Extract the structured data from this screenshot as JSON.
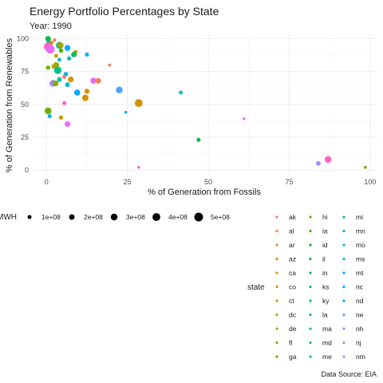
{
  "chart_data": {
    "type": "scatter",
    "title": "Energy Portfolio Percentages by State",
    "subtitle": "Year: 1990",
    "xlabel": "% of Generation from Fossils",
    "ylabel": "% of Generation from Renewables",
    "xlim": [
      -4,
      102
    ],
    "ylim": [
      -3,
      104
    ],
    "x_ticks": [
      0,
      25,
      50,
      75,
      100
    ],
    "y_ticks": [
      0,
      25,
      50,
      75,
      100
    ],
    "x_tick_labels": [
      "0",
      "25",
      "50",
      "75",
      "100"
    ],
    "y_tick_labels": [
      "0",
      "25",
      "50",
      "75",
      "100"
    ],
    "grid": true,
    "caption": "Data Source: EIA",
    "size_legend": {
      "title": "MWH",
      "labels": [
        "1e+08",
        "2e+08",
        "3e+08",
        "4e+08",
        "5e+08"
      ],
      "values": [
        100000000,
        200000000,
        300000000,
        400000000,
        500000000
      ]
    },
    "color_legend": {
      "title": "state",
      "columns": [
        [
          "ak",
          "al",
          "ar",
          "az",
          "ca",
          "co",
          "ct",
          "dc",
          "de",
          "fl",
          "ga"
        ],
        [
          "hi",
          "ia",
          "id",
          "il",
          "in",
          "ks",
          "ky",
          "la",
          "ma",
          "md",
          "me"
        ],
        [
          "mi",
          "mn",
          "mo",
          "ms",
          "mt",
          "nc",
          "nd",
          "ne",
          "nh",
          "nj",
          "nm"
        ]
      ],
      "colors": [
        [
          "#F8766D",
          "#F27D52",
          "#EA8331",
          "#E08B00",
          "#D49200",
          "#C89A00",
          "#B9A000",
          "#ABA300",
          "#9AA800",
          "#87AC00",
          "#70B000"
        ],
        [
          "#53B400",
          "#2EB600",
          "#00B81F",
          "#00BA42",
          "#00BC59",
          "#00BD6D",
          "#00BF7D",
          "#00C08B",
          "#00C098",
          "#00C1A5",
          "#00C0B1"
        ],
        [
          "#00BFBD",
          "#00BDC8",
          "#00BBD2",
          "#00B8DC",
          "#00B4E5",
          "#00AFEE",
          "#00A9FF",
          "#53A1FF",
          "#8B93FF",
          "#A58AFF",
          "#B983FF"
        ]
      ]
    },
    "points": [
      {
        "x": 0.5,
        "y": 100,
        "size": 200000000.0,
        "color": "#00BA42"
      },
      {
        "x": 0.6,
        "y": 98,
        "size": 100000000.0,
        "color": "#00C08B"
      },
      {
        "x": 1.5,
        "y": 97,
        "size": 120000000.0,
        "color": "#E08B00"
      },
      {
        "x": 2.5,
        "y": 99,
        "size": 70000000.0,
        "color": "#F8766D"
      },
      {
        "x": 0.5,
        "y": 94,
        "size": 450000000.0,
        "color": "#FF61C9"
      },
      {
        "x": 1.2,
        "y": 92,
        "size": 480000000.0,
        "color": "#E76BF3"
      },
      {
        "x": 4.0,
        "y": 95,
        "size": 320000000.0,
        "color": "#00BFBD"
      },
      {
        "x": 4.3,
        "y": 95,
        "size": 260000000.0,
        "color": "#9AA800"
      },
      {
        "x": 6.5,
        "y": 93,
        "size": 230000000.0,
        "color": "#00A9FF"
      },
      {
        "x": 4.5,
        "y": 91,
        "size": 130000000.0,
        "color": "#53B400"
      },
      {
        "x": 9.0,
        "y": 90,
        "size": 100000000.0,
        "color": "#B9A000"
      },
      {
        "x": 8.5,
        "y": 88,
        "size": 200000000.0,
        "color": "#00BC59"
      },
      {
        "x": 12.5,
        "y": 88,
        "size": 110000000.0,
        "color": "#00AFEE"
      },
      {
        "x": 3.0,
        "y": 87,
        "size": 100000000.0,
        "color": "#C89A00"
      },
      {
        "x": 7.0,
        "y": 85,
        "size": 110000000.0,
        "color": "#00C1A5"
      },
      {
        "x": 4.0,
        "y": 84,
        "size": 100000000.0,
        "color": "#00BFBD"
      },
      {
        "x": 3.0,
        "y": 80,
        "size": 220000000.0,
        "color": "#9AA800"
      },
      {
        "x": 2.3,
        "y": 79,
        "size": 140000000.0,
        "color": "#ABA300"
      },
      {
        "x": 0.5,
        "y": 78,
        "size": 120000000.0,
        "color": "#70B000"
      },
      {
        "x": 3.5,
        "y": 76,
        "size": 360000000.0,
        "color": "#00C098"
      },
      {
        "x": 19.5,
        "y": 80,
        "size": 60000000.0,
        "color": "#F27D52"
      },
      {
        "x": 6.0,
        "y": 73,
        "size": 130000000.0,
        "color": "#00B8DC"
      },
      {
        "x": 5.5,
        "y": 71,
        "size": 110000000.0,
        "color": "#F8766D"
      },
      {
        "x": 4.0,
        "y": 69,
        "size": 150000000.0,
        "color": "#00C0B1"
      },
      {
        "x": 7.5,
        "y": 69,
        "size": 220000000.0,
        "color": "#D49200"
      },
      {
        "x": 2.0,
        "y": 66,
        "size": 300000000.0,
        "color": "#A58AFF"
      },
      {
        "x": 2.8,
        "y": 66,
        "size": 220000000.0,
        "color": "#87AC00"
      },
      {
        "x": 6.5,
        "y": 65,
        "size": 150000000.0,
        "color": "#00BDC8"
      },
      {
        "x": 14.5,
        "y": 68,
        "size": 240000000.0,
        "color": "#E76BF3"
      },
      {
        "x": 16.0,
        "y": 68,
        "size": 200000000.0,
        "color": "#F27D52"
      },
      {
        "x": 9.5,
        "y": 59,
        "size": 240000000.0,
        "color": "#00A9FF"
      },
      {
        "x": 12.5,
        "y": 60,
        "size": 160000000.0,
        "color": "#E08B00"
      },
      {
        "x": 12.0,
        "y": 55,
        "size": 270000000.0,
        "color": "#D49200"
      },
      {
        "x": 22.5,
        "y": 61,
        "size": 300000000.0,
        "color": "#53A1FF"
      },
      {
        "x": 41.5,
        "y": 59,
        "size": 100000000.0,
        "color": "#00BFBD"
      },
      {
        "x": 28.5,
        "y": 51,
        "size": 400000000.0,
        "color": "#D49200"
      },
      {
        "x": 0.5,
        "y": 45,
        "size": 300000000.0,
        "color": "#70B000"
      },
      {
        "x": 1.0,
        "y": 41,
        "size": 100000000.0,
        "color": "#00A9FF"
      },
      {
        "x": 5.5,
        "y": 51,
        "size": 110000000.0,
        "color": "#FF61C9"
      },
      {
        "x": 24.5,
        "y": 44,
        "size": 50000000.0,
        "color": "#00A9FF"
      },
      {
        "x": 4.5,
        "y": 40,
        "size": 120000000.0,
        "color": "#C89A00"
      },
      {
        "x": 6.5,
        "y": 35,
        "size": 200000000.0,
        "color": "#E76BF3"
      },
      {
        "x": 61.0,
        "y": 39,
        "size": 50000000.0,
        "color": "#E76BF3"
      },
      {
        "x": 47.0,
        "y": 23,
        "size": 100000000.0,
        "color": "#00BA42"
      },
      {
        "x": 87.0,
        "y": 8,
        "size": 300000000.0,
        "color": "#FF61C9"
      },
      {
        "x": 84.0,
        "y": 5,
        "size": 140000000.0,
        "color": "#A58AFF"
      },
      {
        "x": 28.5,
        "y": 2,
        "size": 50000000.0,
        "color": "#FF61C9"
      },
      {
        "x": 98.5,
        "y": 2,
        "size": 60000000.0,
        "color": "#87AC00"
      }
    ]
  }
}
